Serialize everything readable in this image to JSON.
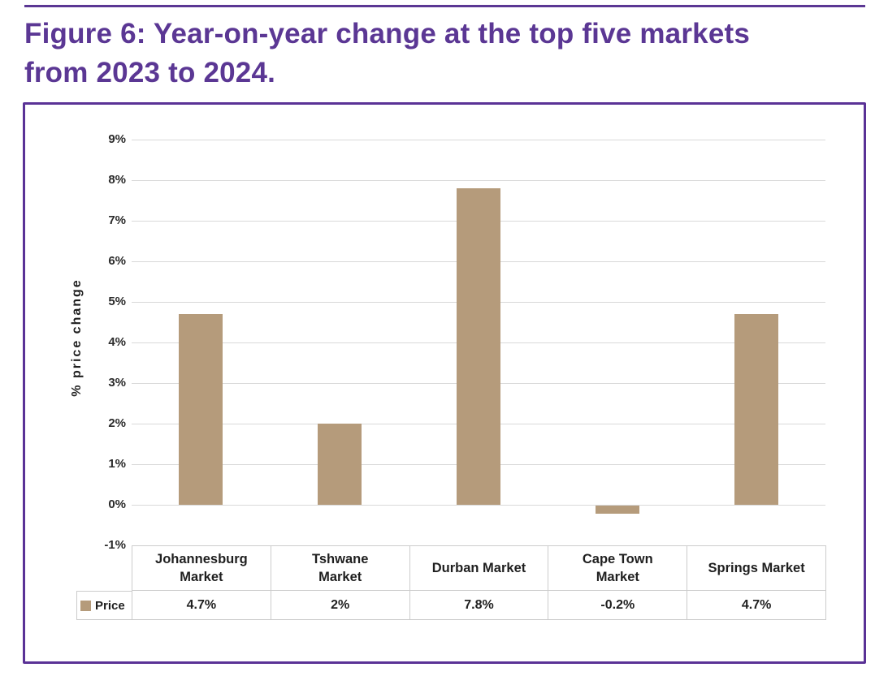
{
  "page": {
    "background": "#ffffff"
  },
  "header": {
    "rule_color": "#5b3794",
    "title_color": "#5b3794",
    "title_line1": "Figure 6: Year-on-year change at the top five markets",
    "title_line2": "from 2023 to 2024."
  },
  "figure": {
    "frame_border_color": "#5a3296"
  },
  "chart_data": {
    "type": "bar",
    "title": "Figure 6: Year-on-year change at the top five markets from 2023 to 2024.",
    "categories": [
      "Johannesburg Market",
      "Tshwane Market",
      "Durban Market",
      "Cape Town Market",
      "Springs Market"
    ],
    "category_lines": [
      [
        "Johannesburg",
        "Market"
      ],
      [
        "Tshwane",
        "Market"
      ],
      [
        "Durban Market"
      ],
      [
        "Cape Town",
        "Market"
      ],
      [
        "Springs Market"
      ]
    ],
    "series": [
      {
        "name": "Price",
        "values": [
          4.7,
          2,
          7.8,
          -0.2,
          4.7
        ],
        "display_values": [
          "4.7%",
          "2%",
          "7.8%",
          "-0.2%",
          "4.7%"
        ],
        "color": "#b59b7b"
      }
    ],
    "xlabel": "",
    "ylabel": "% price change",
    "yticks_labels": [
      "9%",
      "8%",
      "7%",
      "6%",
      "5%",
      "4%",
      "3%",
      "2%",
      "1%",
      "0%",
      "-1%"
    ],
    "yticks_values": [
      9,
      8,
      7,
      6,
      5,
      4,
      3,
      2,
      1,
      0,
      -1
    ],
    "ylim": [
      -1,
      9
    ],
    "grid": true,
    "gridline_color": "#d9d9d9",
    "table_border_color": "#cccccc",
    "text_color": "#1f1f1f",
    "legend_label": "Price",
    "legend_position": "bottom-left"
  }
}
